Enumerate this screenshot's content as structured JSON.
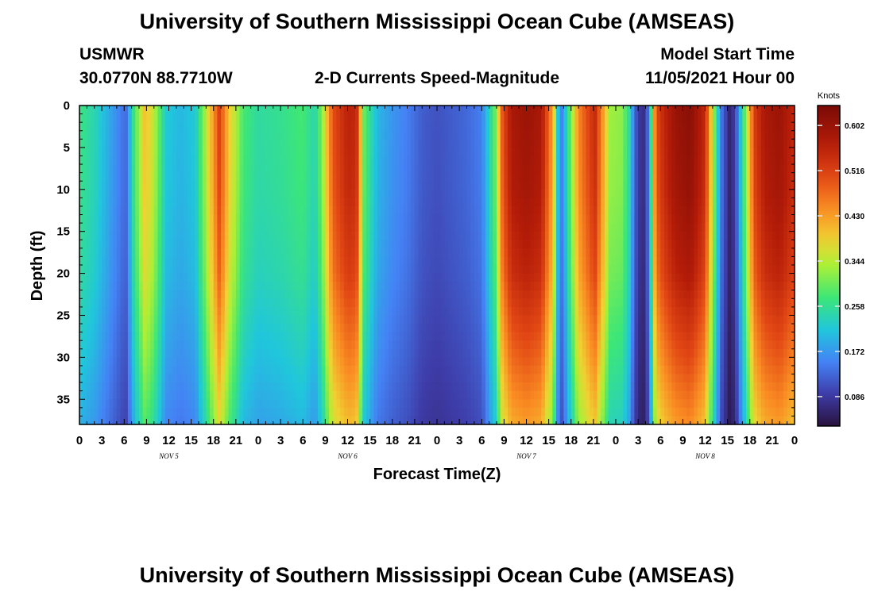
{
  "page": {
    "title": "University of Southern Mississippi Ocean Cube (AMSEAS)",
    "footer_title": "University of Southern Mississippi Ocean Cube (AMSEAS)"
  },
  "header": {
    "station": "USMWR",
    "location": "30.0770N  88.7710W",
    "subtitle": "2-D Currents Speed-Magnitude",
    "model_start_label": "Model Start Time",
    "model_start_value": "11/05/2021 Hour 00"
  },
  "chart_data": {
    "type": "heatmap",
    "title": "2-D Currents Speed-Magnitude",
    "xlabel": "Forecast Time(Z)",
    "ylabel": "Depth (ft)",
    "x_unit": "hours since 11/05/2021 00Z",
    "xlim": [
      0,
      96
    ],
    "ylim": [
      0,
      38
    ],
    "y_inverted": true,
    "x_tick_labels": [
      "0",
      "3",
      "6",
      "9",
      "12",
      "15",
      "18",
      "21",
      "0",
      "3",
      "6",
      "9",
      "12",
      "15",
      "18",
      "21",
      "0",
      "3",
      "6",
      "9",
      "12",
      "15",
      "18",
      "21",
      "0",
      "3",
      "6",
      "9",
      "12",
      "15",
      "18",
      "21",
      "0"
    ],
    "y_tick_labels": [
      "0",
      "5",
      "10",
      "15",
      "20",
      "25",
      "30",
      "35"
    ],
    "day_labels": [
      "NOV 5",
      "NOV 6",
      "NOV 7",
      "NOV 8"
    ],
    "colorbar": {
      "title": "Knots",
      "ticks": [
        "0.602",
        "0.516",
        "0.430",
        "0.344",
        "0.258",
        "0.172",
        "0.086"
      ],
      "range": [
        0.03,
        0.64
      ]
    },
    "time_profile_hours": [
      0,
      2,
      4.5,
      6.2,
      7.4,
      8.8,
      10,
      11.6,
      13.6,
      15.6,
      17.6,
      18.8,
      20,
      22,
      24,
      27,
      30,
      31.6,
      32.4,
      34,
      36,
      37.2,
      38.2,
      40,
      42,
      44,
      46,
      48,
      50,
      52,
      54,
      55.8,
      56.8,
      58,
      60,
      62,
      63.6,
      64.2,
      64.8,
      67,
      69.2,
      71.2,
      72.8,
      73.8,
      74.6,
      75.6,
      76.4,
      77.4,
      78.4,
      80,
      82,
      84,
      85,
      86.2,
      87.4,
      88.2,
      89.2,
      90.6,
      92,
      94,
      96
    ],
    "time_profile_surface_knots": [
      0.27,
      0.24,
      0.175,
      0.13,
      0.28,
      0.4,
      0.35,
      0.22,
      0.2,
      0.22,
      0.4,
      0.52,
      0.4,
      0.28,
      0.25,
      0.26,
      0.28,
      0.24,
      0.3,
      0.5,
      0.56,
      0.55,
      0.3,
      0.2,
      0.17,
      0.15,
      0.12,
      0.11,
      0.12,
      0.13,
      0.15,
      0.3,
      0.5,
      0.58,
      0.6,
      0.58,
      0.42,
      0.22,
      0.15,
      0.45,
      0.55,
      0.33,
      0.32,
      0.25,
      0.12,
      0.06,
      0.14,
      0.5,
      0.55,
      0.6,
      0.62,
      0.55,
      0.35,
      0.14,
      0.05,
      0.12,
      0.28,
      0.52,
      0.58,
      0.6,
      0.55
    ],
    "depth_profile_ft": [
      0,
      10,
      20,
      30,
      38
    ],
    "depth_profile_factor": [
      1.0,
      0.98,
      0.93,
      0.82,
      0.72
    ]
  }
}
